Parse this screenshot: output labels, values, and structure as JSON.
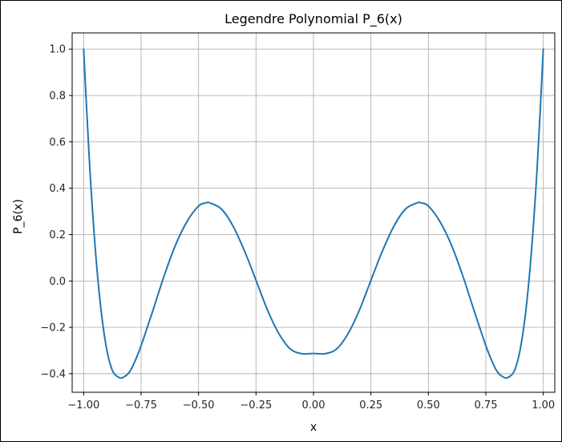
{
  "chart_data": {
    "type": "line",
    "title": "Legendre Polynomial P_6(x)",
    "xlabel": "x",
    "ylabel": "P_6(x)",
    "xlim": [
      -1.05,
      1.05
    ],
    "ylim": [
      -0.48,
      1.07
    ],
    "xticks": [
      -1.0,
      -0.75,
      -0.5,
      -0.25,
      0.0,
      0.25,
      0.5,
      0.75,
      1.0
    ],
    "xtick_labels": [
      "−1.00",
      "−0.75",
      "−0.50",
      "−0.25",
      "0.00",
      "0.25",
      "0.50",
      "0.75",
      "1.00"
    ],
    "yticks": [
      -0.4,
      -0.2,
      0.0,
      0.2,
      0.4,
      0.6,
      0.8,
      1.0
    ],
    "ytick_labels": [
      "−0.4",
      "−0.2",
      "0.0",
      "0.2",
      "0.4",
      "0.6",
      "0.8",
      "1.0"
    ],
    "grid": true,
    "series": [
      {
        "color": "#1f77b4",
        "x": [
          -1.0,
          -0.975,
          -0.95,
          -0.925,
          -0.9,
          -0.875,
          -0.85,
          -0.83,
          -0.8,
          -0.775,
          -0.75,
          -0.7,
          -0.65,
          -0.6,
          -0.55,
          -0.5,
          -0.47,
          -0.45,
          -0.4,
          -0.35,
          -0.3,
          -0.25,
          -0.2,
          -0.15,
          -0.1,
          -0.05,
          0.0,
          0.05,
          0.1,
          0.15,
          0.2,
          0.25,
          0.3,
          0.35,
          0.4,
          0.45,
          0.47,
          0.5,
          0.55,
          0.6,
          0.65,
          0.7,
          0.75,
          0.775,
          0.8,
          0.83,
          0.85,
          0.875,
          0.9,
          0.925,
          0.95,
          0.975,
          1.0
        ],
        "y": [
          1.0,
          0.5178,
          0.147,
          -0.1197,
          -0.2926,
          -0.3857,
          -0.414,
          -0.4164,
          -0.3918,
          -0.3421,
          -0.2789,
          -0.1313,
          0.0215,
          0.1555,
          0.2567,
          0.3232,
          0.3364,
          0.3364,
          0.3097,
          0.2367,
          0.1292,
          0.0029,
          -0.1253,
          -0.228,
          -0.294,
          -0.3136,
          -0.3125,
          -0.3136,
          -0.294,
          -0.228,
          -0.1253,
          0.0029,
          0.1292,
          0.2367,
          0.3097,
          0.3364,
          0.3364,
          0.3232,
          0.2567,
          0.1555,
          0.0215,
          -0.1313,
          -0.2789,
          -0.3421,
          -0.3918,
          -0.4164,
          -0.414,
          -0.3857,
          -0.2926,
          -0.1197,
          0.147,
          0.5178,
          1.0
        ]
      }
    ]
  }
}
